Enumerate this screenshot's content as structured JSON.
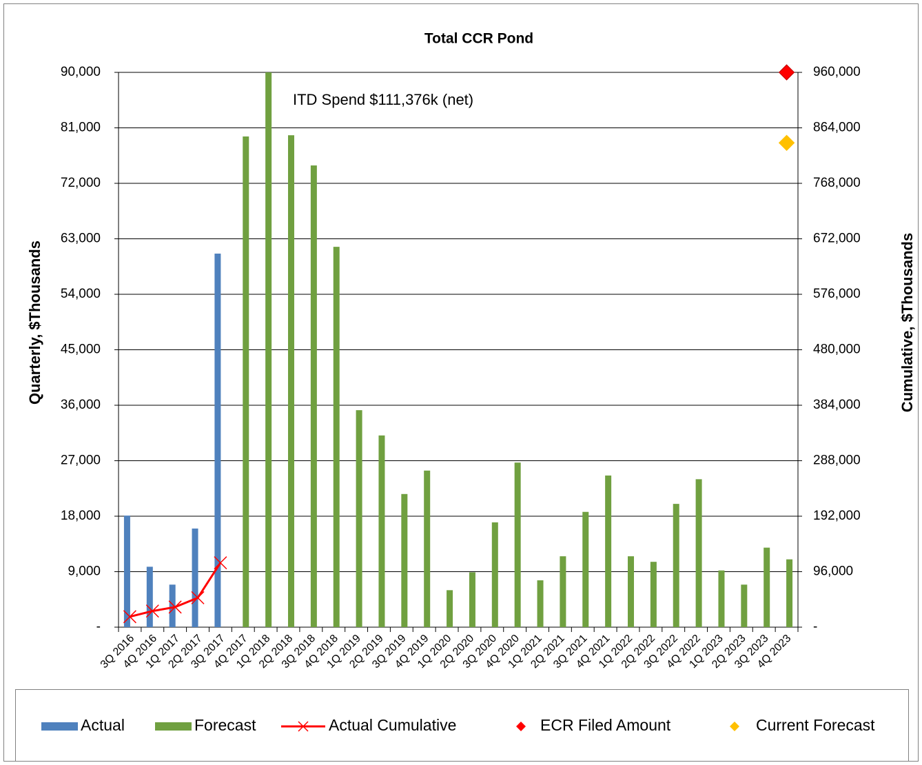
{
  "chart_data": {
    "type": "bar",
    "title": "Total CCR Pond",
    "annotation": "ITD Spend  $111,376k (net)",
    "y_label": "Quarterly, $Thousands",
    "y2_label": "Cumulative, $Thousands",
    "categories": [
      "3Q 2016",
      "4Q 2016",
      "1Q 2017",
      "2Q 2017",
      "3Q 2017",
      "4Q 2017",
      "1Q 2018",
      "2Q 2018",
      "3Q 2018",
      "4Q 2018",
      "1Q 2019",
      "2Q 2019",
      "3Q 2019",
      "4Q 2019",
      "1Q 2020",
      "2Q 2020",
      "3Q 2020",
      "4Q 2020",
      "1Q 2021",
      "2Q 2021",
      "3Q 2021",
      "4Q 2021",
      "1Q 2022",
      "2Q 2022",
      "3Q 2022",
      "4Q 2022",
      "1Q 2023",
      "2Q 2023",
      "3Q 2023",
      "4Q 2023"
    ],
    "series": [
      {
        "name": "Actual",
        "type": "bar",
        "color": "#4f81bd",
        "values": [
          18100,
          9800,
          6900,
          16000,
          60600,
          null,
          null,
          null,
          null,
          null,
          null,
          null,
          null,
          null,
          null,
          null,
          null,
          null,
          null,
          null,
          null,
          null,
          null,
          null,
          null,
          null,
          null,
          null,
          null,
          null
        ]
      },
      {
        "name": "Forecast",
        "type": "bar",
        "color": "#70a040",
        "values": [
          null,
          null,
          null,
          null,
          null,
          79600,
          90000,
          79800,
          74900,
          61700,
          35200,
          31100,
          21600,
          25400,
          6000,
          8900,
          17000,
          26700,
          7600,
          11500,
          18700,
          24600,
          11500,
          10600,
          20000,
          24000,
          9200,
          6900,
          12900,
          11000
        ]
      },
      {
        "name": "Actual Cumulative",
        "type": "line",
        "axis": "y2",
        "color": "#ff0000",
        "values": [
          18100,
          27900,
          34800,
          50800,
          111376,
          null,
          null,
          null,
          null,
          null,
          null,
          null,
          null,
          null,
          null,
          null,
          null,
          null,
          null,
          null,
          null,
          null,
          null,
          null,
          null,
          null,
          null,
          null,
          null,
          null
        ]
      },
      {
        "name": "ECR Filed Amount",
        "type": "scatter",
        "axis": "y2",
        "color": "#ff0000",
        "values": [
          null,
          null,
          null,
          null,
          null,
          null,
          null,
          null,
          null,
          null,
          null,
          null,
          null,
          null,
          null,
          null,
          null,
          null,
          null,
          null,
          null,
          null,
          null,
          null,
          null,
          null,
          null,
          null,
          null,
          960000
        ]
      },
      {
        "name": "Current Forecast",
        "type": "scatter",
        "axis": "y2",
        "color": "#ffc000",
        "values": [
          null,
          null,
          null,
          null,
          null,
          null,
          null,
          null,
          null,
          null,
          null,
          null,
          null,
          null,
          null,
          null,
          null,
          null,
          null,
          null,
          null,
          null,
          null,
          null,
          null,
          null,
          null,
          null,
          null,
          838000
        ]
      }
    ],
    "ylim": [
      0,
      90000
    ],
    "yticks": [
      {
        "value": 0,
        "label": "-"
      },
      {
        "value": 9000,
        "label": "9,000"
      },
      {
        "value": 18000,
        "label": "18,000"
      },
      {
        "value": 27000,
        "label": "27,000"
      },
      {
        "value": 36000,
        "label": "36,000"
      },
      {
        "value": 45000,
        "label": "45,000"
      },
      {
        "value": 54000,
        "label": "54,000"
      },
      {
        "value": 63000,
        "label": "63,000"
      },
      {
        "value": 72000,
        "label": "72,000"
      },
      {
        "value": 81000,
        "label": "81,000"
      },
      {
        "value": 90000,
        "label": "90,000"
      }
    ],
    "y2lim": [
      0,
      960000
    ],
    "y2ticks": [
      {
        "value": 0,
        "label": "-"
      },
      {
        "value": 96000,
        "label": "96,000"
      },
      {
        "value": 192000,
        "label": "192,000"
      },
      {
        "value": 288000,
        "label": "288,000"
      },
      {
        "value": 384000,
        "label": "384,000"
      },
      {
        "value": 480000,
        "label": "480,000"
      },
      {
        "value": 576000,
        "label": "576,000"
      },
      {
        "value": 672000,
        "label": "672,000"
      },
      {
        "value": 768000,
        "label": "768,000"
      },
      {
        "value": 864000,
        "label": "864,000"
      },
      {
        "value": 960000,
        "label": "960,000"
      }
    ],
    "grid": true,
    "legend": "bottom"
  }
}
